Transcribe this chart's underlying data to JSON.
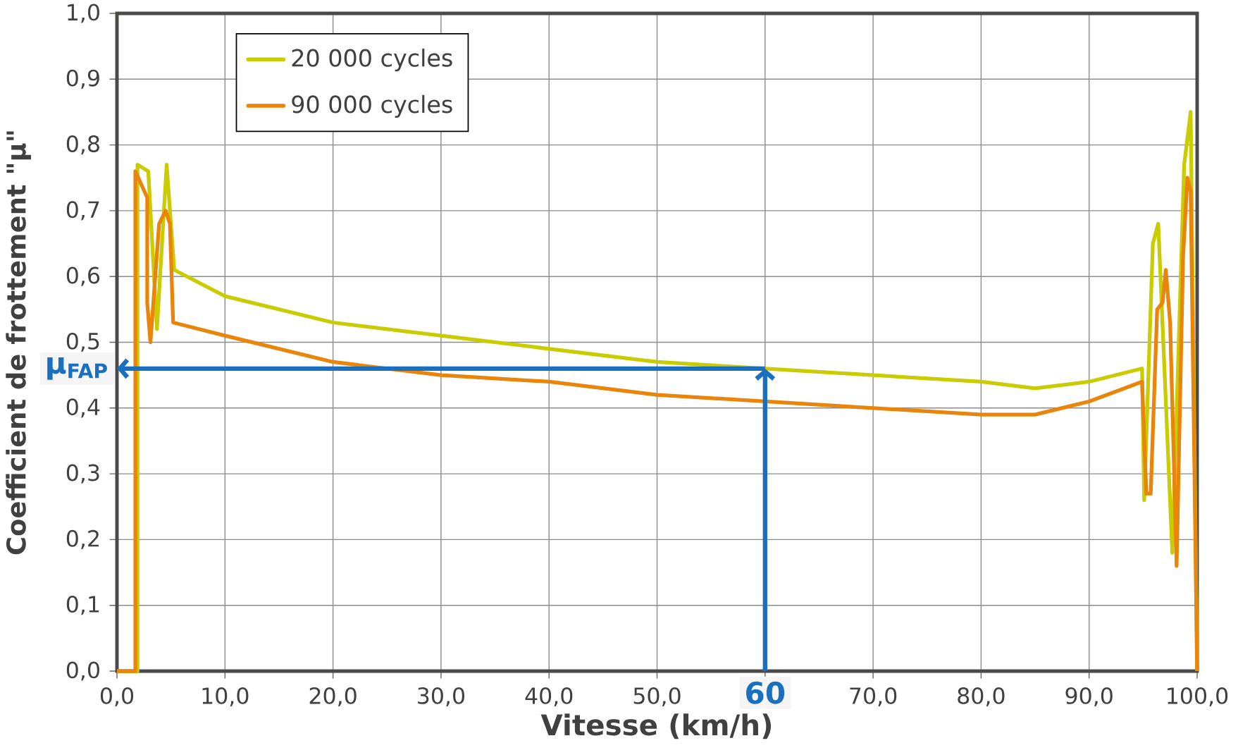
{
  "chart_data": {
    "type": "line",
    "xlabel": "Vitesse (km/h)",
    "ylabel": "Coefficient de frottement \"μ\"",
    "xlim": [
      0,
      100
    ],
    "ylim": [
      0,
      1
    ],
    "xticks": [
      {
        "value": 0,
        "label": "0,0"
      },
      {
        "value": 10,
        "label": "10,0"
      },
      {
        "value": 20,
        "label": "20,0"
      },
      {
        "value": 30,
        "label": "30,0"
      },
      {
        "value": 40,
        "label": "40,0"
      },
      {
        "value": 50,
        "label": "50,0"
      },
      {
        "value": 60,
        "label": null
      },
      {
        "value": 70,
        "label": "70,0"
      },
      {
        "value": 80,
        "label": "80,0"
      },
      {
        "value": 90,
        "label": "90,0"
      },
      {
        "value": 100,
        "label": "100,0"
      }
    ],
    "yticks": [
      {
        "value": 0,
        "label": "0,0"
      },
      {
        "value": 0.1,
        "label": "0,1"
      },
      {
        "value": 0.2,
        "label": "0,2"
      },
      {
        "value": 0.3,
        "label": "0,3"
      },
      {
        "value": 0.4,
        "label": "0,4"
      },
      {
        "value": 0.5,
        "label": "0,5"
      },
      {
        "value": 0.6,
        "label": "0,6"
      },
      {
        "value": 0.7,
        "label": "0,7"
      },
      {
        "value": 0.8,
        "label": "0,8"
      },
      {
        "value": 0.9,
        "label": "0,9"
      },
      {
        "value": 1.0,
        "label": "1,0"
      }
    ],
    "grid": true,
    "legend": "top left",
    "marker": "none",
    "line_style": "solid",
    "series": [
      {
        "name": "20 000 cycles",
        "color": "#c8cc00",
        "x": [
          0,
          1.9,
          1.9,
          2.9,
          3.7,
          4.6,
          5.3,
          10,
          20,
          30,
          40,
          50,
          60,
          70,
          80,
          85,
          90,
          94.9,
          95.1,
          95.9,
          96.4,
          97.7,
          98.8,
          99.4,
          100
        ],
        "values": [
          0,
          0,
          0.77,
          0.76,
          0.52,
          0.77,
          0.61,
          0.57,
          0.53,
          0.51,
          0.49,
          0.47,
          0.46,
          0.45,
          0.44,
          0.43,
          0.44,
          0.46,
          0.26,
          0.65,
          0.68,
          0.18,
          0.77,
          0.85,
          0
        ]
      },
      {
        "name": "90 000 cycles",
        "color": "#e8850a",
        "x": [
          0,
          1.7,
          1.7,
          2.8,
          2.8,
          3.1,
          3.9,
          4.5,
          4.9,
          5.2,
          10,
          20,
          30,
          40,
          50,
          60,
          70,
          80,
          85,
          90,
          94.9,
          95.3,
          95.7,
          96.3,
          96.8,
          97.1,
          97.5,
          98.1,
          98.7,
          99.1,
          99.4,
          100
        ],
        "values": [
          0,
          0,
          0.76,
          0.72,
          0.56,
          0.5,
          0.68,
          0.7,
          0.68,
          0.53,
          0.51,
          0.47,
          0.45,
          0.44,
          0.42,
          0.41,
          0.4,
          0.39,
          0.39,
          0.41,
          0.44,
          0.27,
          0.27,
          0.55,
          0.56,
          0.61,
          0.53,
          0.16,
          0.63,
          0.75,
          0.73,
          0
        ]
      }
    ],
    "ref_lines": [
      {
        "axis": "x",
        "value": 60,
        "label": "60",
        "color": "#1a6fbf"
      },
      {
        "axis": "y",
        "value": 0.46,
        "label": "μ$_{FAP}$",
        "color": "#1a6fbf"
      }
    ]
  }
}
